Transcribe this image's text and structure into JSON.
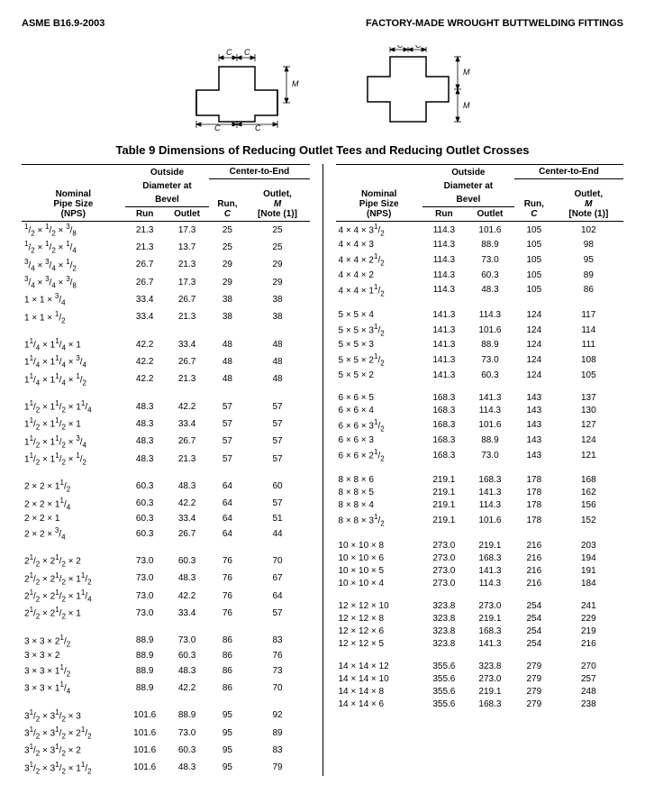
{
  "header": {
    "left": "ASME B16.9-2003",
    "right": "FACTORY-MADE WROUGHT BUTTWELDING FITTINGS"
  },
  "table_title": "Table 9   Dimensions of Reducing Outlet Tees and Reducing Outlet Crosses",
  "columns": {
    "nps_l1": "Nominal",
    "nps_l2": "Pipe Size",
    "nps_l3": "(NPS)",
    "od_group": "Outside",
    "od_group2": "Diameter at",
    "od_group3": "Bevel",
    "od_run": "Run",
    "od_outlet": "Outlet",
    "cte_group": "Center-to-End",
    "run_h": "Run,",
    "run_c": "C",
    "outlet_h": "Outlet,",
    "outlet_m": "M",
    "outlet_note": "[Note (1)]"
  },
  "diagrams": {
    "labels": {
      "C": "C",
      "M": "M"
    }
  },
  "left_groups": [
    [
      {
        "nps": "½ × ½ × ⅜",
        "run": "21.3",
        "out": "17.3",
        "c": "25",
        "m": "25"
      },
      {
        "nps": "½ × ½ × ¼",
        "run": "21.3",
        "out": "13.7",
        "c": "25",
        "m": "25"
      },
      {
        "nps": "¾ × ¾ × ½",
        "run": "26.7",
        "out": "21.3",
        "c": "29",
        "m": "29"
      },
      {
        "nps": "¾ × ¾ × ⅜",
        "run": "26.7",
        "out": "17.3",
        "c": "29",
        "m": "29"
      },
      {
        "nps": "1 × 1 × ¾",
        "run": "33.4",
        "out": "26.7",
        "c": "38",
        "m": "38"
      },
      {
        "nps": "1 × 1 × ½",
        "run": "33.4",
        "out": "21.3",
        "c": "38",
        "m": "38"
      }
    ],
    [
      {
        "nps": "1¼ × 1¼ × 1",
        "run": "42.2",
        "out": "33.4",
        "c": "48",
        "m": "48"
      },
      {
        "nps": "1¼ × 1¼ × ¾",
        "run": "42.2",
        "out": "26.7",
        "c": "48",
        "m": "48"
      },
      {
        "nps": "1¼ × 1¼ × ½",
        "run": "42.2",
        "out": "21.3",
        "c": "48",
        "m": "48"
      }
    ],
    [
      {
        "nps": "1½ × 1½ × 1¼",
        "run": "48.3",
        "out": "42.2",
        "c": "57",
        "m": "57"
      },
      {
        "nps": "1½ × 1½ × 1",
        "run": "48.3",
        "out": "33.4",
        "c": "57",
        "m": "57"
      },
      {
        "nps": "1½ × 1½ × ¾",
        "run": "48.3",
        "out": "26.7",
        "c": "57",
        "m": "57"
      },
      {
        "nps": "1½ × 1½ × ½",
        "run": "48.3",
        "out": "21.3",
        "c": "57",
        "m": "57"
      }
    ],
    [
      {
        "nps": "2 × 2 × 1½",
        "run": "60.3",
        "out": "48.3",
        "c": "64",
        "m": "60"
      },
      {
        "nps": "2 × 2 × 1¼",
        "run": "60.3",
        "out": "42.2",
        "c": "64",
        "m": "57"
      },
      {
        "nps": "2 × 2 × 1",
        "run": "60.3",
        "out": "33.4",
        "c": "64",
        "m": "51"
      },
      {
        "nps": "2 × 2 × ¾",
        "run": "60.3",
        "out": "26.7",
        "c": "64",
        "m": "44"
      }
    ],
    [
      {
        "nps": "2½ × 2½ × 2",
        "run": "73.0",
        "out": "60.3",
        "c": "76",
        "m": "70"
      },
      {
        "nps": "2½ × 2½ × 1½",
        "run": "73.0",
        "out": "48.3",
        "c": "76",
        "m": "67"
      },
      {
        "nps": "2½ × 2½ × 1¼",
        "run": "73.0",
        "out": "42.2",
        "c": "76",
        "m": "64"
      },
      {
        "nps": "2½ × 2½ × 1",
        "run": "73.0",
        "out": "33.4",
        "c": "76",
        "m": "57"
      }
    ],
    [
      {
        "nps": "3 × 3 × 2½",
        "run": "88.9",
        "out": "73.0",
        "c": "86",
        "m": "83"
      },
      {
        "nps": "3 × 3 × 2",
        "run": "88.9",
        "out": "60.3",
        "c": "86",
        "m": "76"
      },
      {
        "nps": "3 × 3 × 1½",
        "run": "88.9",
        "out": "48.3",
        "c": "86",
        "m": "73"
      },
      {
        "nps": "3 × 3 × 1¼",
        "run": "88.9",
        "out": "42.2",
        "c": "86",
        "m": "70"
      }
    ],
    [
      {
        "nps": "3½ × 3½ × 3",
        "run": "101.6",
        "out": "88.9",
        "c": "95",
        "m": "92"
      },
      {
        "nps": "3½ × 3½ × 2½",
        "run": "101.6",
        "out": "73.0",
        "c": "95",
        "m": "89"
      },
      {
        "nps": "3½ × 3½ × 2",
        "run": "101.6",
        "out": "60.3",
        "c": "95",
        "m": "83"
      },
      {
        "nps": "3½ × 3½ × 1½",
        "run": "101.6",
        "out": "48.3",
        "c": "95",
        "m": "79"
      }
    ]
  ],
  "right_groups": [
    [
      {
        "nps": "4 × 4 × 3½",
        "run": "114.3",
        "out": "101.6",
        "c": "105",
        "m": "102"
      },
      {
        "nps": "4 × 4 × 3",
        "run": "114.3",
        "out": "88.9",
        "c": "105",
        "m": "98"
      },
      {
        "nps": "4 × 4 × 2½",
        "run": "114.3",
        "out": "73.0",
        "c": "105",
        "m": "95"
      },
      {
        "nps": "4 × 4 × 2",
        "run": "114.3",
        "out": "60.3",
        "c": "105",
        "m": "89"
      },
      {
        "nps": "4 × 4 × 1½",
        "run": "114.3",
        "out": "48.3",
        "c": "105",
        "m": "86"
      }
    ],
    [
      {
        "nps": "5 × 5 × 4",
        "run": "141.3",
        "out": "114.3",
        "c": "124",
        "m": "117"
      },
      {
        "nps": "5 × 5 × 3½",
        "run": "141.3",
        "out": "101.6",
        "c": "124",
        "m": "114"
      },
      {
        "nps": "5 × 5 × 3",
        "run": "141.3",
        "out": "88.9",
        "c": "124",
        "m": "111"
      },
      {
        "nps": "5 × 5 × 2½",
        "run": "141.3",
        "out": "73.0",
        "c": "124",
        "m": "108"
      },
      {
        "nps": "5 × 5 × 2",
        "run": "141.3",
        "out": "60.3",
        "c": "124",
        "m": "105"
      }
    ],
    [
      {
        "nps": "6 × 6 × 5",
        "run": "168.3",
        "out": "141.3",
        "c": "143",
        "m": "137"
      },
      {
        "nps": "6 × 6 × 4",
        "run": "168.3",
        "out": "114.3",
        "c": "143",
        "m": "130"
      },
      {
        "nps": "6 × 6 × 3½",
        "run": "168.3",
        "out": "101.6",
        "c": "143",
        "m": "127"
      },
      {
        "nps": "6 × 6 × 3",
        "run": "168.3",
        "out": "88.9",
        "c": "143",
        "m": "124"
      },
      {
        "nps": "6 × 6 × 2½",
        "run": "168.3",
        "out": "73.0",
        "c": "143",
        "m": "121"
      }
    ],
    [
      {
        "nps": "8 × 8 × 6",
        "run": "219.1",
        "out": "168.3",
        "c": "178",
        "m": "168"
      },
      {
        "nps": "8 × 8 × 5",
        "run": "219.1",
        "out": "141.3",
        "c": "178",
        "m": "162"
      },
      {
        "nps": "8 × 8 × 4",
        "run": "219.1",
        "out": "114.3",
        "c": "178",
        "m": "156"
      },
      {
        "nps": "8 × 8 × 3½",
        "run": "219.1",
        "out": "101.6",
        "c": "178",
        "m": "152"
      }
    ],
    [
      {
        "nps": "10 × 10 × 8",
        "run": "273.0",
        "out": "219.1",
        "c": "216",
        "m": "203"
      },
      {
        "nps": "10 × 10 × 6",
        "run": "273.0",
        "out": "168.3",
        "c": "216",
        "m": "194"
      },
      {
        "nps": "10 × 10 × 5",
        "run": "273.0",
        "out": "141.3",
        "c": "216",
        "m": "191"
      },
      {
        "nps": "10 × 10 × 4",
        "run": "273.0",
        "out": "114.3",
        "c": "216",
        "m": "184"
      }
    ],
    [
      {
        "nps": "12 × 12 × 10",
        "run": "323.8",
        "out": "273.0",
        "c": "254",
        "m": "241"
      },
      {
        "nps": "12 × 12 × 8",
        "run": "323.8",
        "out": "219.1",
        "c": "254",
        "m": "229"
      },
      {
        "nps": "12 × 12 × 6",
        "run": "323.8",
        "out": "168.3",
        "c": "254",
        "m": "219"
      },
      {
        "nps": "12 × 12 × 5",
        "run": "323.8",
        "out": "141.3",
        "c": "254",
        "m": "216"
      }
    ],
    [
      {
        "nps": "14 × 14 × 12",
        "run": "355.6",
        "out": "323.8",
        "c": "279",
        "m": "270"
      },
      {
        "nps": "14 × 14 × 10",
        "run": "355.6",
        "out": "273.0",
        "c": "279",
        "m": "257"
      },
      {
        "nps": "14 × 14 × 8",
        "run": "355.6",
        "out": "219.1",
        "c": "279",
        "m": "248"
      },
      {
        "nps": "14 × 14 × 6",
        "run": "355.6",
        "out": "168.3",
        "c": "279",
        "m": "238"
      }
    ]
  ]
}
